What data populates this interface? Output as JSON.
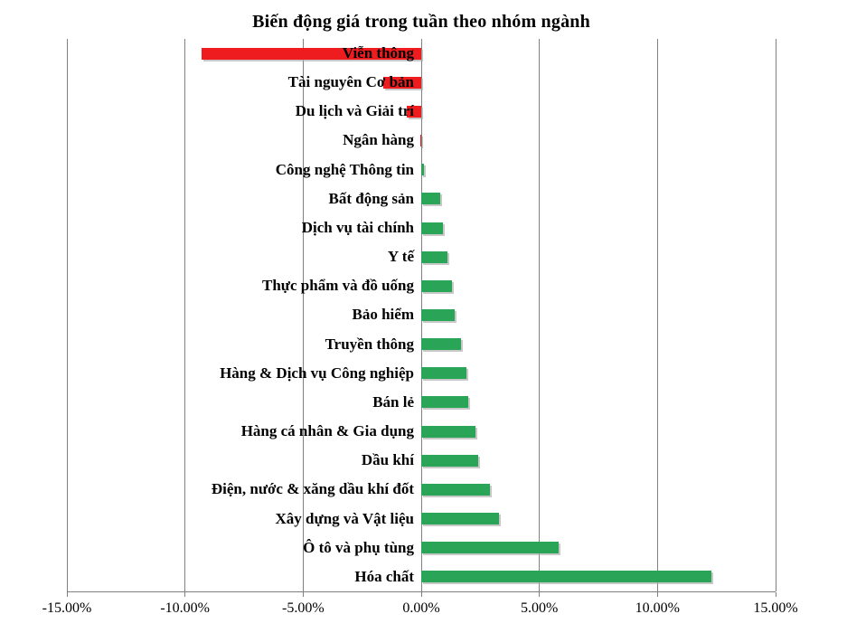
{
  "title": "Biến động giá trong tuần theo nhóm ngành",
  "colors": {
    "positive_bar": "#2aa457",
    "negative_bar": "#ee1c1f",
    "gridline": "#808080",
    "axis_line": "#7f7f7f",
    "background": "#ffffff",
    "text": "#000000"
  },
  "chart_data": {
    "type": "bar",
    "orientation": "horizontal",
    "title": "Biến động giá trong tuần theo nhóm ngành",
    "value_unit": "percent",
    "grid": true,
    "legend": false,
    "categories": [
      "Viễn thông",
      "Tài nguyên Cơ bản",
      "Du lịch và Giải trí",
      "Ngân hàng",
      "Công nghệ Thông tin",
      "Bất động sản",
      "Dịch vụ tài chính",
      "Y tế",
      "Thực phẩm và đồ uống",
      "Bảo hiểm",
      "Truyền thông",
      "Hàng & Dịch vụ Công nghiệp",
      "Bán lẻ",
      "Hàng cá nhân & Gia dụng",
      "Dầu khí",
      "Điện, nước & xăng dầu khí đốt",
      "Xây dựng và Vật liệu",
      "Ô tô và phụ tùng",
      "Hóa chất"
    ],
    "values": [
      -9.3,
      -1.6,
      -0.6,
      -0.05,
      0.1,
      0.8,
      0.9,
      1.1,
      1.3,
      1.4,
      1.7,
      1.9,
      2.0,
      2.3,
      2.4,
      2.9,
      3.3,
      5.8,
      12.3
    ],
    "x_axis": {
      "min": -15,
      "max": 15,
      "tick_values": [
        -15,
        -10,
        -5,
        0,
        5,
        10,
        15
      ],
      "tick_labels": [
        "-15.00%",
        "-10.00%",
        "-5.00%",
        "0.00%",
        "5.00%",
        "10.00%",
        "15.00%"
      ]
    }
  }
}
